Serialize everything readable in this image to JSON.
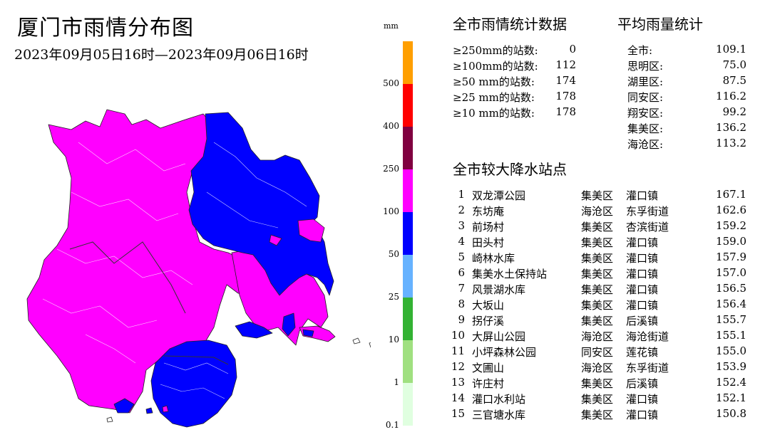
{
  "title": "厦门市雨情分布图",
  "date_range": "2023年09月05日16时—2023年09月06日16时",
  "legend": {
    "unit": "mm",
    "labels": [
      "500",
      "400",
      "250",
      "100",
      "50",
      "25",
      "10",
      "1",
      "0.1"
    ],
    "colors": [
      "#ff9f00",
      "#ff0000",
      "#800040",
      "#ff00ff",
      "#0000ff",
      "#66b2ff",
      "#33b233",
      "#a0e080",
      "#e0ffe0"
    ]
  },
  "map": {
    "colors": {
      "magenta": "#ff00ff",
      "blue": "#0000ff",
      "land_edge": "#222222"
    }
  },
  "stats": {
    "heading": "全市雨情统计数据",
    "rows": [
      {
        "label": "≥250mm的站数:",
        "value": "0"
      },
      {
        "label": "≥100mm的站数:",
        "value": "112"
      },
      {
        "label": "≥50 mm的站数:",
        "value": "174"
      },
      {
        "label": "≥25 mm的站数:",
        "value": "178"
      },
      {
        "label": "≥10 mm的站数:",
        "value": "178"
      }
    ]
  },
  "avg": {
    "heading": "平均雨量统计",
    "rows": [
      {
        "label": "全市:",
        "value": "109.1"
      },
      {
        "label": "思明区:",
        "value": "75.0"
      },
      {
        "label": "湖里区:",
        "value": "87.5"
      },
      {
        "label": "同安区:",
        "value": "116.2"
      },
      {
        "label": "翔安区:",
        "value": "99.2"
      },
      {
        "label": "集美区:",
        "value": "136.2"
      },
      {
        "label": "海沧区:",
        "value": "113.2"
      }
    ]
  },
  "stations": {
    "heading": "全市较大降水站点",
    "rows": [
      {
        "rank": "1",
        "name": "双龙潭公园",
        "district": "集美区",
        "town": "灌口镇",
        "value": "167.1"
      },
      {
        "rank": "2",
        "name": "东坊庵",
        "district": "海沧区",
        "town": "东孚街道",
        "value": "162.6"
      },
      {
        "rank": "3",
        "name": "前场村",
        "district": "集美区",
        "town": "杏滨街道",
        "value": "159.2"
      },
      {
        "rank": "4",
        "name": "田头村",
        "district": "集美区",
        "town": "灌口镇",
        "value": "159.0"
      },
      {
        "rank": "5",
        "name": "崎林水库",
        "district": "集美区",
        "town": "灌口镇",
        "value": "157.9"
      },
      {
        "rank": "6",
        "name": "集美水土保持站",
        "district": "集美区",
        "town": "灌口镇",
        "value": "157.0"
      },
      {
        "rank": "7",
        "name": "风景湖水库",
        "district": "集美区",
        "town": "灌口镇",
        "value": "156.5"
      },
      {
        "rank": "8",
        "name": "大坂山",
        "district": "集美区",
        "town": "灌口镇",
        "value": "156.4"
      },
      {
        "rank": "9",
        "name": "拐仔溪",
        "district": "集美区",
        "town": "后溪镇",
        "value": "155.7"
      },
      {
        "rank": "10",
        "name": "大屏山公园",
        "district": "海沧区",
        "town": "海沧街道",
        "value": "155.1"
      },
      {
        "rank": "11",
        "name": "小坪森林公园",
        "district": "同安区",
        "town": "莲花镇",
        "value": "155.0"
      },
      {
        "rank": "12",
        "name": "文圃山",
        "district": "海沧区",
        "town": "东孚街道",
        "value": "153.9"
      },
      {
        "rank": "13",
        "name": "许庄村",
        "district": "集美区",
        "town": "后溪镇",
        "value": "152.4"
      },
      {
        "rank": "14",
        "name": "灌口水利站",
        "district": "集美区",
        "town": "灌口镇",
        "value": "152.1"
      },
      {
        "rank": "15",
        "name": "三官塘水库",
        "district": "集美区",
        "town": "灌口镇",
        "value": "150.8"
      }
    ]
  }
}
